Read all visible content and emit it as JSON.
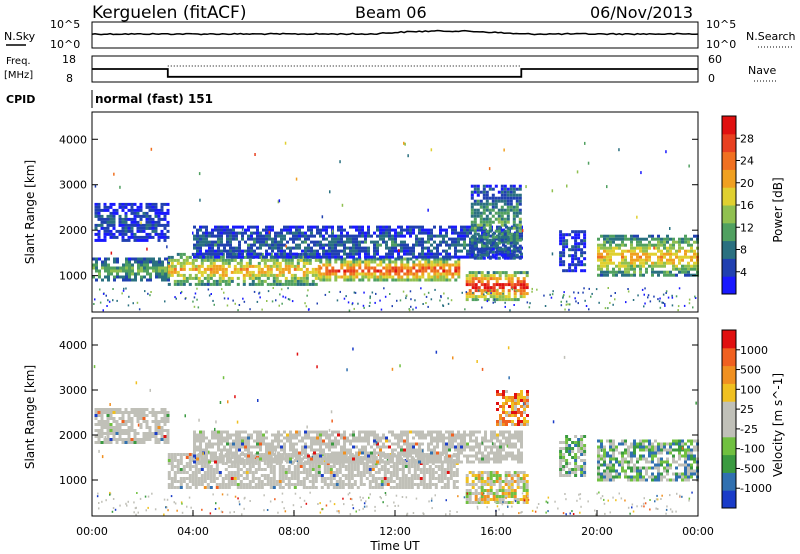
{
  "header": {
    "station": "Kerguelen (fitACF)",
    "beam": "Beam 06",
    "date": "06/Nov/2013"
  },
  "top_panels": {
    "nsky": {
      "label": "N.Sky",
      "left_ticks": [
        "10^5",
        "10^0"
      ],
      "right_ticks": [
        "10^5",
        "10^0"
      ],
      "right_label": "N.Search"
    },
    "freq": {
      "label_line1": "Freq.",
      "label_line2": "[MHz]",
      "left_ticks": [
        "18",
        "8"
      ],
      "right_ticks": [
        "60",
        "0"
      ],
      "right_label": "Nave",
      "values_mhz": [
        {
          "t": 0,
          "v": 13
        },
        {
          "t": 3,
          "v": 13
        },
        {
          "t": 3,
          "v": 10
        },
        {
          "t": 17,
          "v": 10
        },
        {
          "t": 17,
          "v": 13
        },
        {
          "t": 24,
          "v": 13
        }
      ]
    },
    "cpid": {
      "label": "CPID",
      "text": "normal (fast) 151"
    }
  },
  "chart_data": [
    {
      "type": "heatmap",
      "name": "power",
      "ylabel": "Slant Range [km]",
      "xlabel": "",
      "xlim": [
        0,
        24
      ],
      "ylim": [
        200,
        4600
      ],
      "yticks": [
        "1000",
        "2000",
        "3000",
        "4000"
      ],
      "colorbar": {
        "label": "Power [dB]",
        "ticks": [
          "4",
          "8",
          "12",
          "16",
          "20",
          "24",
          "28"
        ],
        "colors": [
          "#1919ff",
          "#2040b0",
          "#2a7080",
          "#50a060",
          "#90c050",
          "#e0d030",
          "#f0a020",
          "#f07020",
          "#e84020",
          "#e01010"
        ]
      },
      "regions": [
        {
          "t0": 0.1,
          "t1": 3.0,
          "r0": 1800,
          "r1": 2600,
          "level": 0.15
        },
        {
          "t0": 0.0,
          "t1": 3.0,
          "r0": 900,
          "r1": 1400,
          "level": 0.35
        },
        {
          "t0": 3.0,
          "t1": 9.0,
          "r0": 800,
          "r1": 1500,
          "level": 0.55
        },
        {
          "t0": 9.0,
          "t1": 14.5,
          "r0": 900,
          "r1": 1400,
          "level": 0.7
        },
        {
          "t0": 4.0,
          "t1": 17.0,
          "r0": 1400,
          "r1": 2100,
          "level": 0.2
        },
        {
          "t0": 14.8,
          "t1": 17.2,
          "r0": 500,
          "r1": 1100,
          "level": 0.8
        },
        {
          "t0": 15.0,
          "t1": 17.0,
          "r0": 1400,
          "r1": 3000,
          "level": 0.3
        },
        {
          "t0": 18.5,
          "t1": 19.5,
          "r0": 1100,
          "r1": 2000,
          "level": 0.15
        },
        {
          "t0": 20.0,
          "t1": 24.0,
          "r0": 1000,
          "r1": 1900,
          "level": 0.55
        }
      ]
    },
    {
      "type": "heatmap",
      "name": "velocity",
      "ylabel": "Slant Range [km]",
      "xlabel": "Time UT",
      "xlim": [
        0,
        24
      ],
      "ylim": [
        200,
        4600
      ],
      "yticks": [
        "1000",
        "2000",
        "3000",
        "4000"
      ],
      "xticks": [
        "00:00",
        "04:00",
        "08:00",
        "12:00",
        "16:00",
        "20:00",
        "00:00"
      ],
      "colorbar": {
        "label": "Velocity [m s^-1]",
        "ticks": [
          "1000",
          "500",
          "100",
          "25",
          "-25",
          "-100",
          "-500",
          "-1000"
        ],
        "colors": [
          "#1a3cc8",
          "#3070b0",
          "#3a9a40",
          "#70c040",
          "#c0c0b8",
          "#c0c0b8",
          "#f0c020",
          "#f09020",
          "#f06020",
          "#e01010"
        ]
      },
      "regions": [
        {
          "t0": 0.1,
          "t1": 3.0,
          "r0": 1800,
          "r1": 2600,
          "level": 0.5
        },
        {
          "t0": 3.0,
          "t1": 14.5,
          "r0": 800,
          "r1": 1600,
          "level": 0.5
        },
        {
          "t0": 4.0,
          "t1": 17.0,
          "r0": 1400,
          "r1": 2100,
          "level": 0.5
        },
        {
          "t0": 14.8,
          "t1": 17.2,
          "r0": 500,
          "r1": 1200,
          "level": 0.55
        },
        {
          "t0": 16.0,
          "t1": 17.2,
          "r0": 2200,
          "r1": 3000,
          "level": 0.75
        },
        {
          "t0": 18.5,
          "t1": 19.5,
          "r0": 1100,
          "r1": 2000,
          "level": 0.35
        },
        {
          "t0": 20.0,
          "t1": 24.0,
          "r0": 1000,
          "r1": 1900,
          "level": 0.35
        }
      ]
    }
  ]
}
